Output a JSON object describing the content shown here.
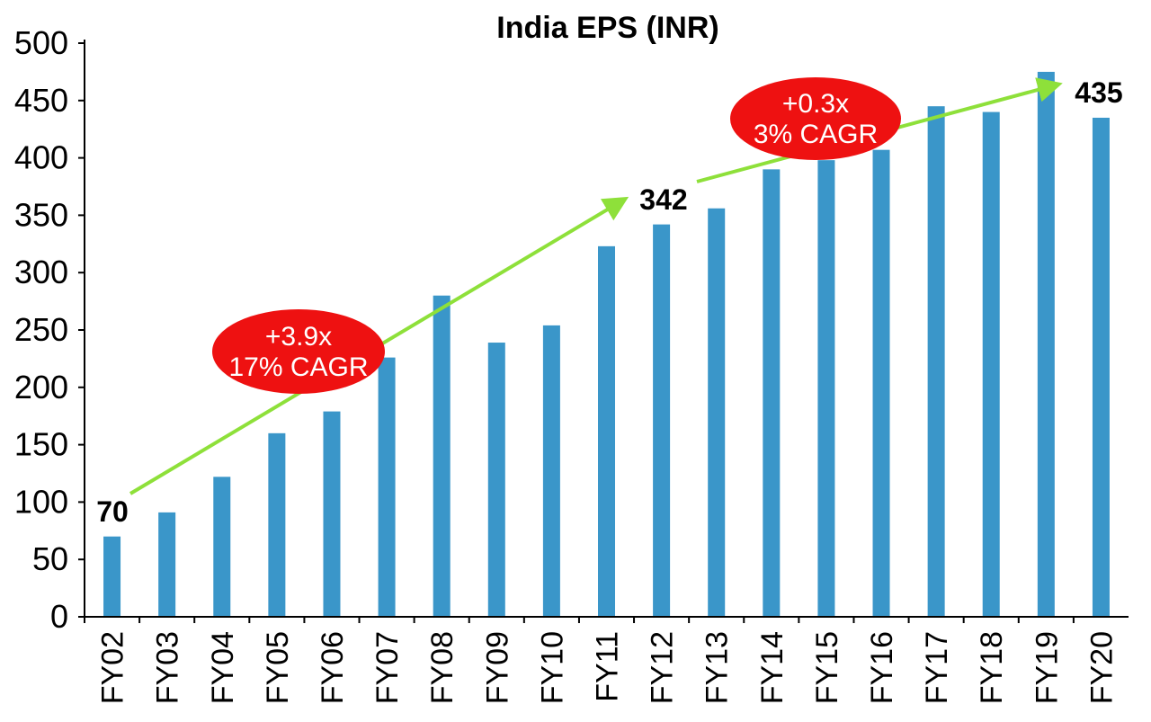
{
  "chart_data": {
    "type": "bar",
    "title": "India EPS (INR)",
    "xlabel": "",
    "ylabel": "",
    "ylim": [
      0,
      500
    ],
    "yticks": [
      0,
      50,
      100,
      150,
      200,
      250,
      300,
      350,
      400,
      450,
      500
    ],
    "grid": false,
    "categories": [
      "FY02",
      "FY03",
      "FY04",
      "FY05",
      "FY06",
      "FY07",
      "FY08",
      "FY09",
      "FY10",
      "FY11",
      "FY12",
      "FY13",
      "FY14",
      "FY15",
      "FY16",
      "FY17",
      "FY18",
      "FY19",
      "FY20"
    ],
    "values": [
      70,
      91,
      122,
      160,
      179,
      226,
      280,
      239,
      254,
      323,
      342,
      356,
      390,
      398,
      407,
      445,
      440,
      475,
      435
    ],
    "bar_color": "#3a96c9",
    "data_labels": [
      {
        "category": "FY02",
        "text": "70"
      },
      {
        "category": "FY12",
        "text": "342"
      },
      {
        "category": "FY20",
        "text": "435"
      }
    ],
    "annotations": [
      {
        "line1": "+3.9x",
        "line2": "17% CAGR",
        "from": "FY02",
        "to": "FY12"
      },
      {
        "line1": "+0.3x",
        "line2": "3% CAGR",
        "from": "FY12",
        "to": "FY20"
      }
    ],
    "arrow_color": "#8ee03a",
    "badge_color": "#ee1111"
  }
}
